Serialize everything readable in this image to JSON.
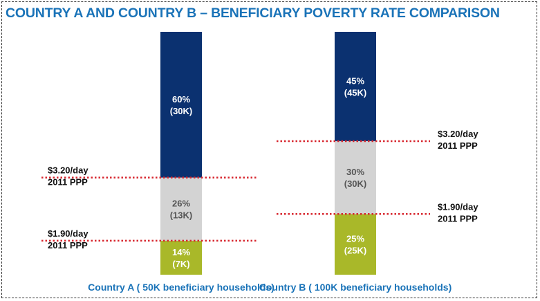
{
  "title": "COUNTRY A  AND  COUNTRY B – BENEFICIARY POVERTY RATE COMPARISON",
  "colors": {
    "title": "#1a73b8",
    "top_segment": "#0b3170",
    "middle_segment": "#d3d3d3",
    "bottom_segment": "#a9b829",
    "threshold_line": "#d7262e"
  },
  "chart_data": {
    "type": "bar",
    "subtype": "stacked-100-percent",
    "title": "COUNTRY A  AND  COUNTRY B – BENEFICIARY POVERTY RATE COMPARISON",
    "categories": [
      "Country A ( 50K beneficiary households)",
      "Country B ( 100K beneficiary households)"
    ],
    "ylim": [
      0,
      100
    ],
    "unit": "percent of beneficiary households",
    "series": [
      {
        "name": "bottom",
        "values": [
          14,
          25
        ],
        "labels": [
          [
            "14%",
            "(7K)"
          ],
          [
            "25%",
            "(25K)"
          ]
        ]
      },
      {
        "name": "middle",
        "values": [
          26,
          30
        ],
        "labels": [
          [
            "26%",
            "(13K)"
          ],
          [
            "30%",
            "(30K)"
          ]
        ]
      },
      {
        "name": "top",
        "values": [
          60,
          45
        ],
        "labels": [
          [
            "60%",
            "(30K)"
          ],
          [
            "45%",
            "(45K)"
          ]
        ]
      }
    ],
    "thresholds": [
      {
        "category": 0,
        "at_value": 14,
        "side": "left",
        "label": [
          "$1.90/day",
          "2011 PPP"
        ]
      },
      {
        "category": 0,
        "at_value": 40,
        "side": "left",
        "label": [
          "$3.20/day",
          "2011 PPP"
        ]
      },
      {
        "category": 1,
        "at_value": 25,
        "side": "right",
        "label": [
          "$1.90/day",
          "2011 PPP"
        ]
      },
      {
        "category": 1,
        "at_value": 55,
        "side": "right",
        "label": [
          "$3.20/day",
          "2011 PPP"
        ]
      }
    ]
  }
}
